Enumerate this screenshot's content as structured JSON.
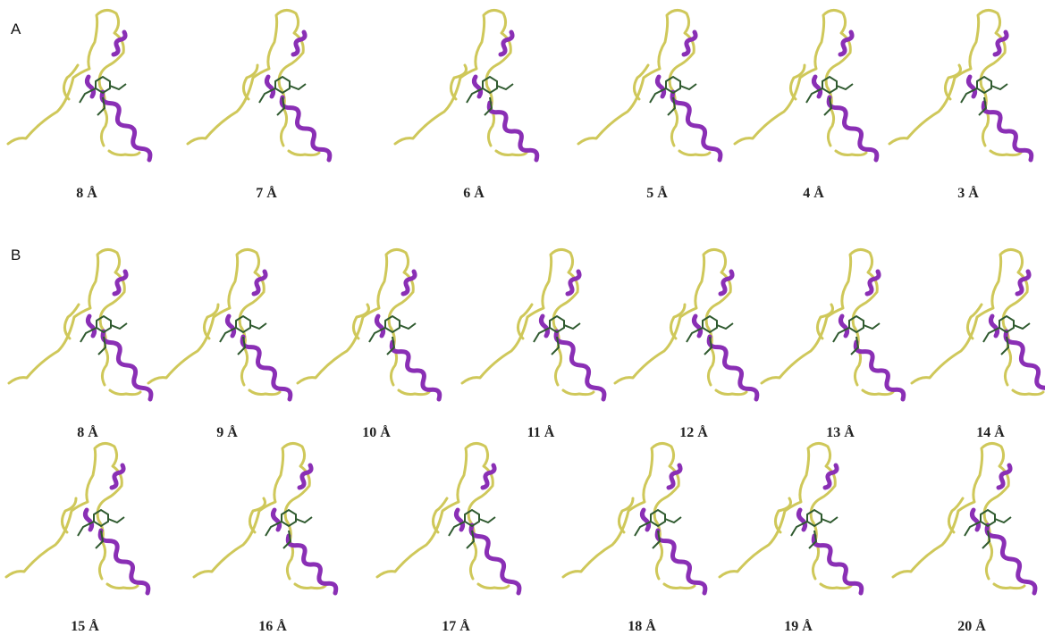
{
  "panels": [
    {
      "label": "A",
      "items": [
        "8 Å",
        "7 Å",
        "6 Å",
        "5 Å",
        "4 Å",
        "3 Å"
      ]
    },
    {
      "label": "B",
      "items": [
        "8 Å",
        "9 Å",
        "10 Å",
        "11 Å",
        "12 Å",
        "13 Å",
        "14 Å",
        "15 Å",
        "16 Å",
        "17 Å",
        "18 Å",
        "19 Å",
        "20 Å"
      ]
    }
  ]
}
